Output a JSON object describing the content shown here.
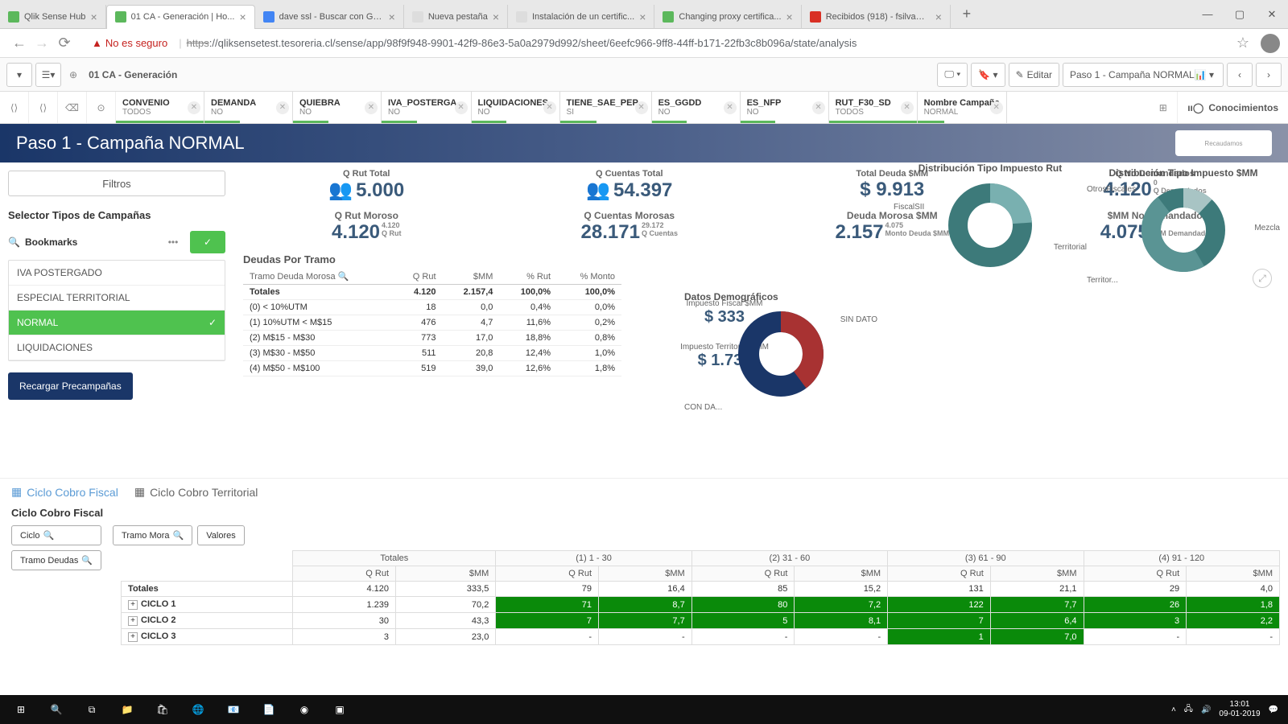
{
  "browser": {
    "tabs": [
      {
        "label": "Qlik Sense Hub",
        "icon_bg": "#5cb85c"
      },
      {
        "label": "01 CA - Generación | Ho...",
        "icon_bg": "#5cb85c",
        "active": true
      },
      {
        "label": "dave ssl - Buscar con Go...",
        "icon_bg": "#4285f4"
      },
      {
        "label": "Nueva pestaña",
        "icon_bg": "#ddd"
      },
      {
        "label": "Instalación de un certific...",
        "icon_bg": "#ddd"
      },
      {
        "label": "Changing proxy certifica...",
        "icon_bg": "#5cb85c"
      },
      {
        "label": "Recibidos (918) - fsilva@...",
        "icon_bg": "#d93025"
      }
    ],
    "not_secure": "No es seguro",
    "url_strike": "https",
    "url_rest": "://qliksensetest.tesoreria.cl/sense/app/98f9f948-9901-42f9-86e3-5a0a2979d992/sheet/6eefc966-9ff8-44ff-b171-22fb3c8b096a/state/analysis"
  },
  "qlik": {
    "sheet_name": "01 CA - Generación",
    "edit": "Editar",
    "step": "Paso 1 - Campaña NORMAL",
    "conocimientos": "Conocimientos"
  },
  "filters": [
    {
      "label": "CONVENIO",
      "value": "TODOS",
      "bar": "#5cb85c",
      "bw": 100
    },
    {
      "label": "DEMANDA",
      "value": "NO",
      "bar": "#5cb85c",
      "bw": 40
    },
    {
      "label": "QUIEBRA",
      "value": "NO",
      "bar": "#5cb85c",
      "bw": 40
    },
    {
      "label": "IVA_POSTERGA...",
      "value": "NO",
      "bar": "#5cb85c",
      "bw": 40
    },
    {
      "label": "LIQUIDACIONES",
      "value": "NO",
      "bar": "#5cb85c",
      "bw": 40
    },
    {
      "label": "TIENE_SAE_PEP...",
      "value": "SI",
      "bar": "#5cb85c",
      "bw": 40
    },
    {
      "label": "ES_GGDD",
      "value": "NO",
      "bar": "#5cb85c",
      "bw": 40
    },
    {
      "label": "ES_NFP",
      "value": "NO",
      "bar": "#5cb85c",
      "bw": 40
    },
    {
      "label": "RUT_F30_SD",
      "value": "TODOS",
      "bar": "#5cb85c",
      "bw": 100
    },
    {
      "label": "Nombre Campaña",
      "value": "NORMAL",
      "bar": "#5cb85c",
      "bw": 30
    }
  ],
  "banner_title": "Paso 1 - Campaña NORMAL",
  "left": {
    "filtros": "Filtros",
    "selector": "Selector Tipos de Campañas",
    "bookmarks": "Bookmarks",
    "items": [
      "IVA POSTERGADO",
      "ESPECIAL TERRITORIAL",
      "NORMAL",
      "LIQUIDACIONES"
    ],
    "selected_idx": 2,
    "reload": "Recargar Precampañas"
  },
  "kpis_top": [
    {
      "label": "Q Rut Total",
      "value": "5.000",
      "icon": true
    },
    {
      "label": "Q Cuentas Total",
      "value": "54.397",
      "icon": true
    },
    {
      "label": "Total Deuda $MM",
      "value": "$ 9.913"
    },
    {
      "label": "Q No Demandados",
      "value": "4.120",
      "sub1": "0",
      "sub2": "Q Demandados"
    }
  ],
  "kpis_mid": [
    {
      "label": "Q Rut Moroso",
      "value": "4.120",
      "sub1": "4.120",
      "sub2": "Q Rut"
    },
    {
      "label": "Q Cuentas Morosas",
      "value": "28.171",
      "sub1": "29.172",
      "sub2": "Q Cuentas"
    },
    {
      "label": "Deuda Morosa $MM",
      "value": "2.157",
      "sub1": "4.075",
      "sub2": "Monto Deuda $MM"
    },
    {
      "label": "$MM No Demandado",
      "value": "4.075",
      "sub1": "0",
      "sub2": "$MM Demandado"
    }
  ],
  "deuda": {
    "title": "Deudas Por Tramo",
    "headers": [
      "Tramo Deuda Morosa",
      "Q Rut",
      "$MM",
      "% Rut",
      "% Monto"
    ],
    "totals": [
      "Totales",
      "4.120",
      "2.157,4",
      "100,0%",
      "100,0%"
    ],
    "rows": [
      [
        "(0) < 10%UTM",
        "18",
        "0,0",
        "0,4%",
        "0,0%"
      ],
      [
        "(1) 10%UTM < M$15",
        "476",
        "4,7",
        "11,6%",
        "0,2%"
      ],
      [
        "(2) M$15 - M$30",
        "773",
        "17,0",
        "18,8%",
        "0,8%"
      ],
      [
        "(3) M$30 - M$50",
        "511",
        "20,8",
        "12,4%",
        "1,0%"
      ],
      [
        "(4) M$50 - M$100",
        "519",
        "39,0",
        "12,6%",
        "1,8%"
      ]
    ]
  },
  "side_kpis": [
    {
      "label": "Impuesto Fiscal $MM",
      "value": "$ 333"
    },
    {
      "label": "Impuesto Territorial $MM",
      "value": "$ 1.736"
    }
  ],
  "donuts": {
    "d1": {
      "title": "Distribución Tipo Impuesto Rut",
      "labels": [
        "FiscalSII",
        "Territorial"
      ],
      "colors": [
        "#79b0b0",
        "#3d7a7a"
      ],
      "slices": [
        120,
        240
      ]
    },
    "d2": {
      "title": "Datos Demográficos",
      "labels": [
        "SIN DATO",
        "CON DA..."
      ],
      "colors": [
        "#a83232",
        "#1a3668"
      ],
      "slices": [
        140,
        220
      ]
    },
    "d3": {
      "title": "Distribución Tipo Impuesto $MM",
      "labels": [
        "OtrosFiscales",
        "Mezcla",
        "Territor..."
      ],
      "colors": [
        "#a8c4c4",
        "#3d7a7a",
        "#5a9494"
      ],
      "slices": [
        40,
        160,
        160
      ]
    }
  },
  "cycle_tabs": [
    "Ciclo Cobro Fiscal",
    "Ciclo Cobro Territorial"
  ],
  "cycle_section": "Ciclo Cobro Fiscal",
  "pivot_btns": {
    "ciclo": "Ciclo",
    "tramo_mora": "Tramo Mora",
    "valores": "Valores",
    "tramo_deudas": "Tramo Deudas"
  },
  "pivot": {
    "col_groups": [
      "Totales",
      "(1) 1 - 30",
      "(2) 31 - 60",
      "(3) 61 - 90",
      "(4) 91 - 120"
    ],
    "sub_headers": [
      "Q Rut",
      "$MM"
    ],
    "rows": [
      {
        "label": "Totales",
        "cells": [
          "4.120",
          "333,5",
          "79",
          "16,4",
          "85",
          "15,2",
          "131",
          "21,1",
          "29",
          "4,0"
        ],
        "green": []
      },
      {
        "label": "CICLO 1",
        "expand": true,
        "cells": [
          "1.239",
          "70,2",
          "71",
          "8,7",
          "80",
          "7,2",
          "122",
          "7,7",
          "26",
          "1,8"
        ],
        "green": [
          2,
          3,
          4,
          5,
          6,
          7,
          8,
          9
        ]
      },
      {
        "label": "CICLO 2",
        "expand": true,
        "cells": [
          "30",
          "43,3",
          "7",
          "7,7",
          "5",
          "8,1",
          "7",
          "6,4",
          "3",
          "2,2"
        ],
        "green": [
          2,
          3,
          4,
          5,
          6,
          7,
          8,
          9
        ]
      },
      {
        "label": "CICLO 3",
        "expand": true,
        "cells": [
          "3",
          "23,0",
          "-",
          "-",
          "-",
          "-",
          "1",
          "7,0",
          "-",
          "-"
        ],
        "green": [
          6,
          7
        ]
      }
    ]
  },
  "taskbar": {
    "time": "13:01",
    "date": "09-01-2019"
  },
  "colors": {
    "accent": "#1a3668",
    "green": "#4fc24f"
  }
}
